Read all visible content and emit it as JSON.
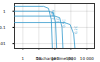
{
  "chart_data": {
    "type": "line",
    "log": true,
    "grid": true,
    "x_label": "Discharge time (h)",
    "xlim": [
      0.3,
      30000
    ],
    "xticks": [
      1,
      10,
      100,
      1000,
      {
        "value": 10000,
        "label": "10 000"
      }
    ],
    "ylim": [
      0.005,
      3
    ],
    "yticks": [
      0.01,
      0.1,
      1
    ],
    "series": [
      {
        "name": "2.85V",
        "color": "#3399cc",
        "x": [
          0.3,
          20,
          40,
          60,
          70
        ],
        "values": [
          2,
          2,
          1.5,
          0.3,
          0.005
        ]
      },
      {
        "name": "1C",
        "color": "#3399cc",
        "x": [
          0.3,
          40,
          80,
          110,
          130
        ],
        "values": [
          1,
          1,
          0.8,
          0.2,
          0.005
        ]
      },
      {
        "name": "0.5C",
        "color": "#3399cc",
        "x": [
          0.3,
          100,
          200,
          280,
          320
        ],
        "values": [
          0.5,
          0.5,
          0.4,
          0.1,
          0.005
        ]
      },
      {
        "name": "0.2C",
        "color": "#3399cc",
        "x": [
          0.3,
          400,
          900,
          1500,
          1800
        ],
        "values": [
          0.2,
          0.2,
          0.15,
          0.04,
          0.005
        ]
      }
    ]
  }
}
